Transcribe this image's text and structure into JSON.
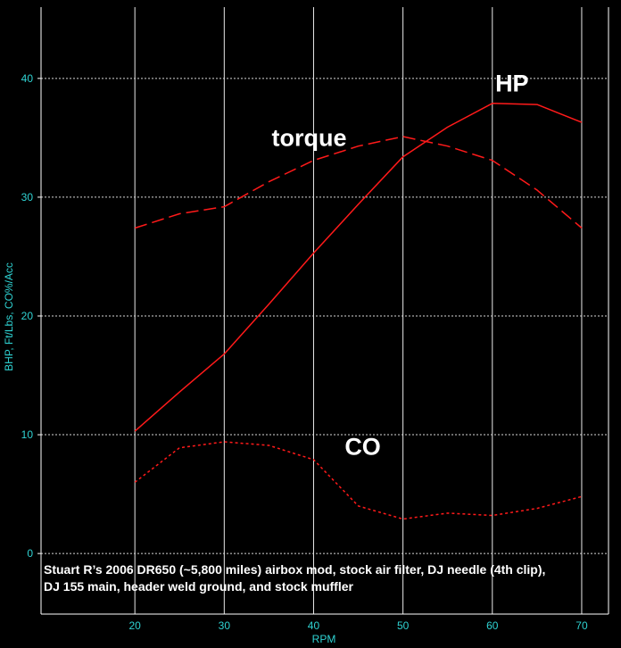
{
  "chart_data": {
    "type": "line",
    "title": "",
    "xlabel": "RPM",
    "ylabel": "BHP, Ft/Lbs, CO%/Acc",
    "xlim": [
      9.5,
      73
    ],
    "ylim": [
      -5.1,
      46
    ],
    "x_ticks": [
      20,
      30,
      40,
      50,
      60,
      70
    ],
    "y_ticks": [
      0,
      10,
      20,
      30,
      40
    ],
    "grid": true,
    "series": [
      {
        "name": "HP",
        "color": "#ff1a1a",
        "style": "solid",
        "x": [
          20,
          25,
          30,
          35,
          40,
          45,
          50,
          55,
          60,
          65,
          70
        ],
        "y": [
          10.3,
          13.6,
          16.8,
          21.0,
          25.3,
          29.4,
          33.4,
          35.9,
          37.9,
          37.8,
          36.3
        ]
      },
      {
        "name": "torque",
        "color": "#ff1a1a",
        "style": "dashed",
        "x": [
          20,
          25,
          30,
          35,
          40,
          45,
          50,
          55,
          60,
          65,
          70
        ],
        "y": [
          27.4,
          28.6,
          29.2,
          31.3,
          33.1,
          34.3,
          35.1,
          34.3,
          33.1,
          30.6,
          27.4
        ]
      },
      {
        "name": "CO",
        "color": "#ff1a1a",
        "style": "dotted",
        "x": [
          20,
          25,
          30,
          35,
          40,
          45,
          50,
          55,
          60,
          65,
          70
        ],
        "y": [
          6.0,
          8.9,
          9.4,
          9.1,
          7.9,
          4.0,
          2.9,
          3.4,
          3.2,
          3.8,
          4.8
        ]
      }
    ],
    "annotations": [
      {
        "text": "HP",
        "x": 62.2,
        "y": 38.9
      },
      {
        "text": "torque",
        "x": 39.5,
        "y": 34.3
      },
      {
        "text": "CO",
        "x": 45.5,
        "y": 8.3
      }
    ],
    "caption_lines": [
      "Stuart R’s 2006 DR650 (~5,800 miles) airbox mod, stock air filter, DJ needle (4th clip),",
      "DJ 155 main, header weld ground, and stock muffler"
    ]
  }
}
